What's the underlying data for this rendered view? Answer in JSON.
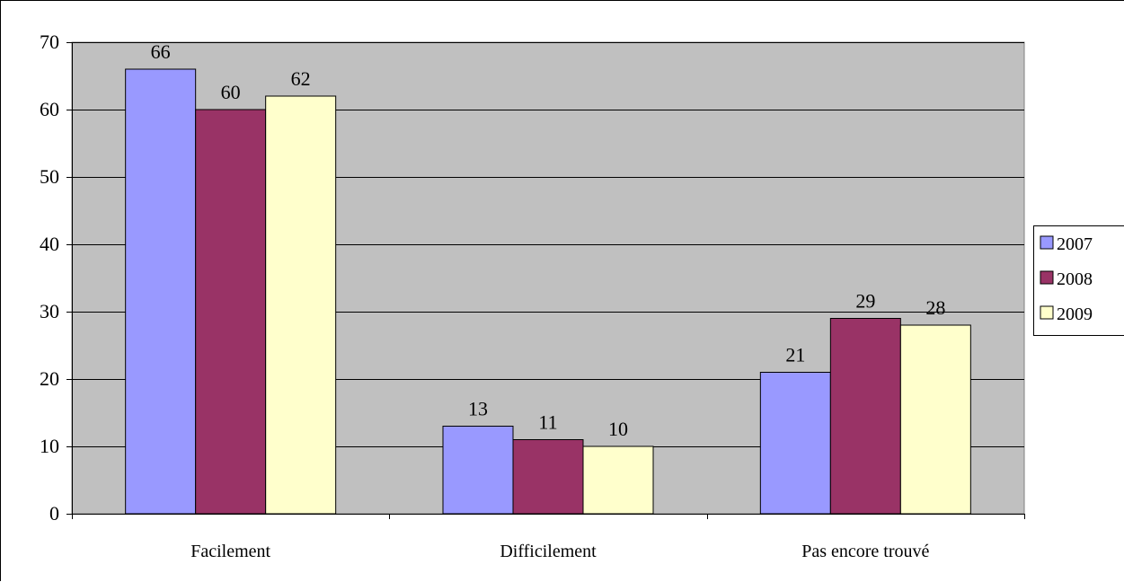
{
  "chart_data": {
    "type": "bar",
    "title": "",
    "xlabel": "",
    "ylabel": "",
    "categories": [
      "Facilement",
      "Difficilement",
      "Pas encore trouvé"
    ],
    "series": [
      {
        "name": "2007",
        "values": [
          66,
          13,
          21
        ],
        "color": "#9999ff"
      },
      {
        "name": "2008",
        "values": [
          60,
          11,
          29
        ],
        "color": "#993366"
      },
      {
        "name": "2009",
        "values": [
          62,
          10,
          28
        ],
        "color": "#ffffcc"
      }
    ],
    "ylim": [
      0,
      70
    ],
    "yticks": [
      0,
      10,
      20,
      30,
      40,
      50,
      60,
      70
    ],
    "grid": true,
    "plot_background": "#c0c0c0",
    "legend_position": "right",
    "data_labels": true
  }
}
